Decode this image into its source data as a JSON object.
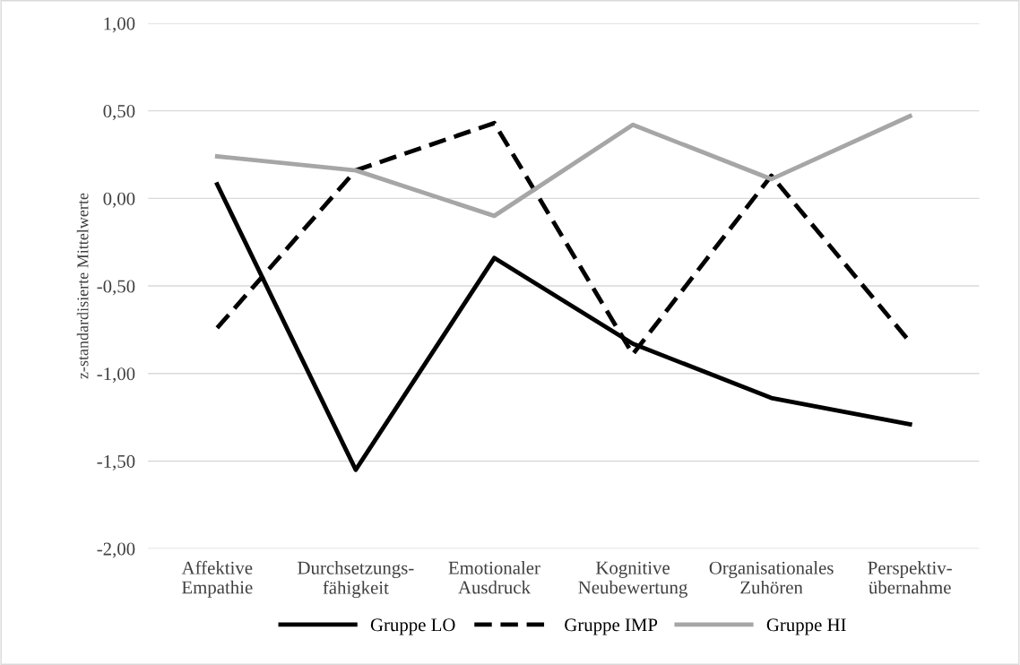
{
  "chart_data": {
    "type": "line",
    "ylabel": "z-standardisierte Mittelwerte",
    "categories": [
      "Affektive\nEmpathie",
      "Durchsetzungs-\nfähigkeit",
      "Emotionaler\nAusdruck",
      "Kognitive\nNeubewertung",
      "Organisationales\nZuhören",
      "Perspektiv-\nübernahme"
    ],
    "series": [
      {
        "name": "Gruppe LO",
        "color": "#000000",
        "line_style": "solid",
        "values": [
          0.08,
          -1.55,
          -0.34,
          -0.83,
          -1.14,
          -1.29
        ]
      },
      {
        "name": "Gruppe IMP",
        "color": "#000000",
        "line_style": "dashed",
        "values": [
          -0.74,
          0.16,
          0.43,
          -0.89,
          0.13,
          -0.82
        ]
      },
      {
        "name": "Gruppe HI",
        "color": "#a6a6a6",
        "line_style": "solid",
        "values": [
          0.24,
          0.16,
          -0.1,
          0.42,
          0.11,
          0.47
        ]
      }
    ],
    "ylim": [
      -2,
      1
    ],
    "yticks": [
      {
        "value": -2,
        "label": "-2,00"
      },
      {
        "value": -1.5,
        "label": "-1,50"
      },
      {
        "value": -1,
        "label": "-1,00"
      },
      {
        "value": -0.5,
        "label": "-0,50"
      },
      {
        "value": 0,
        "label": "0,00"
      },
      {
        "value": 0.5,
        "label": "0,50"
      },
      {
        "value": 1,
        "label": "1,00"
      }
    ],
    "grid": "y",
    "legend": "bottom",
    "marker": "none"
  }
}
